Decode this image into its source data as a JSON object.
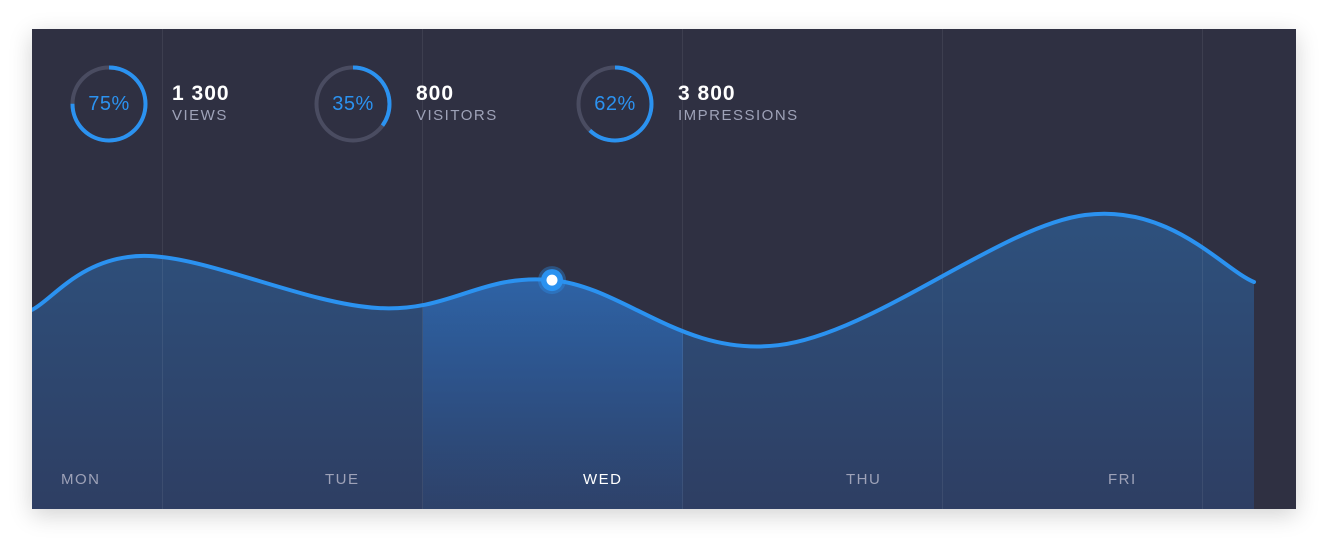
{
  "colors": {
    "background": "#2f3042",
    "accent": "#2b92f0",
    "track": "#4a4c61",
    "label": "#9ea2b8",
    "value": "#ffffff"
  },
  "stats": [
    {
      "percent_label": "75%",
      "progress": 0.75,
      "value": "1 300",
      "label": "VIEWS"
    },
    {
      "percent_label": "35%",
      "progress": 0.35,
      "value": "800",
      "label": "VISITORS"
    },
    {
      "percent_label": "62%",
      "progress": 0.62,
      "value": "3 800",
      "label": "IMPRESSIONS"
    }
  ],
  "chart_data": {
    "type": "area",
    "categories": [
      "MON",
      "TUE",
      "WED",
      "THU",
      "FRI"
    ],
    "selected": "WED",
    "grid": true,
    "points": [
      {
        "x": 0.0,
        "y": 0.49
      },
      {
        "x": 0.43,
        "y": 0.78
      },
      {
        "x": 1.33,
        "y": 0.5
      },
      {
        "x": 2.0,
        "y": 0.65
      },
      {
        "x": 2.87,
        "y": 0.3
      },
      {
        "x": 4.05,
        "y": 1.0
      },
      {
        "x": 4.7,
        "y": 0.64
      }
    ],
    "highlight": {
      "x": 2.0,
      "y": 0.65
    }
  }
}
